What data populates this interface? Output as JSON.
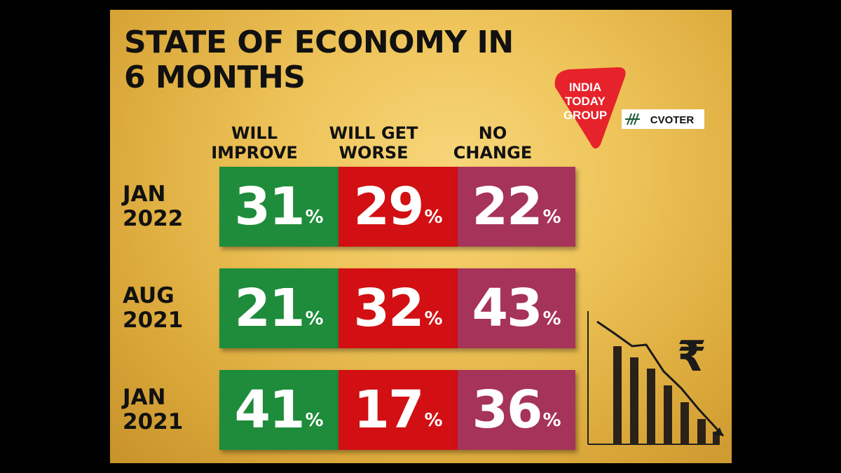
{
  "title_line1": "STATE OF ECONOMY IN",
  "title_line2": "6 MONTHS",
  "logo": {
    "line1": "INDIA",
    "line2": "TODAY",
    "line3": "GROUP",
    "partner": "CVOTER"
  },
  "deco_icon": "rupee-falling-bar-chart-icon",
  "colors": {
    "will_improve": "#1e8c3a",
    "will_get_worse": "#d20f12",
    "no_change": "#a6335a"
  },
  "chart_data": {
    "type": "table",
    "title": "STATE OF ECONOMY IN 6 MONTHS",
    "columns": [
      {
        "line1": "WILL",
        "line2": "IMPROVE"
      },
      {
        "line1": "WILL GET",
        "line2": "WORSE"
      },
      {
        "line1": "NO",
        "line2": "CHANGE"
      }
    ],
    "rows": [
      {
        "label1": "JAN",
        "label2": "2022",
        "values": [
          31,
          29,
          22
        ]
      },
      {
        "label1": "AUG",
        "label2": "2021",
        "values": [
          21,
          32,
          43
        ]
      },
      {
        "label1": "JAN",
        "label2": "2021",
        "values": [
          41,
          17,
          36
        ]
      }
    ],
    "unit": "%"
  }
}
